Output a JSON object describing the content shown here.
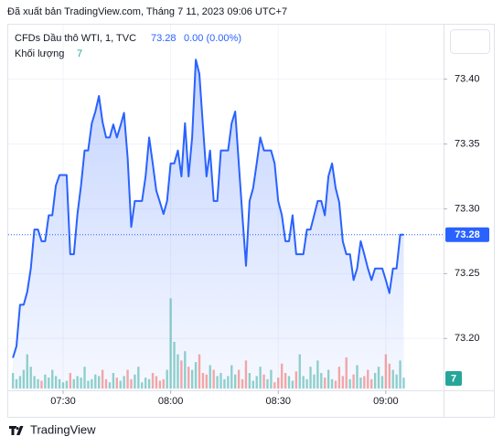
{
  "header": "Đã xuất bản TradingView.com, Tháng 7 11, 2023 09:06 UTC+7",
  "footer": "TradingView",
  "chart_data": {
    "type": "line",
    "change": "0.00 (0.00%)",
    "x": [
      436,
      437,
      438,
      439,
      440,
      441,
      442,
      443,
      444,
      445,
      446,
      447,
      448,
      449,
      450,
      451,
      452,
      453,
      454,
      455,
      456,
      457,
      458,
      459,
      460,
      461,
      462,
      463,
      464,
      465,
      466,
      467,
      468,
      469,
      470,
      471,
      472,
      473,
      474,
      475,
      476,
      477,
      478,
      479,
      480,
      481,
      482,
      483,
      484,
      485,
      486,
      487,
      488,
      489,
      490,
      491,
      492,
      493,
      494,
      495,
      496,
      497,
      498,
      499,
      500,
      501,
      502,
      503,
      504,
      505,
      506,
      507,
      508,
      509,
      510,
      511,
      512,
      513,
      514,
      515,
      516,
      517,
      518,
      519,
      520,
      521,
      522,
      523,
      524,
      525,
      526,
      527,
      528,
      529,
      530,
      531,
      532,
      533,
      534,
      535,
      536,
      537,
      538,
      539,
      540,
      541,
      542,
      543,
      544,
      545
    ],
    "series": [
      {
        "name": "CFDs Dầu thô WTI, 1, TVC",
        "color": "#2962ff",
        "values": [
          73.185,
          73.194,
          73.226,
          73.226,
          73.236,
          73.254,
          73.284,
          73.284,
          73.275,
          73.275,
          73.295,
          73.295,
          73.318,
          73.326,
          73.326,
          73.326,
          73.265,
          73.265,
          73.296,
          73.318,
          73.345,
          73.345,
          73.366,
          73.375,
          73.387,
          73.367,
          73.355,
          73.355,
          73.365,
          73.355,
          73.364,
          73.374,
          73.339,
          73.286,
          73.306,
          73.306,
          73.306,
          73.325,
          73.355,
          73.335,
          73.314,
          73.305,
          73.296,
          73.306,
          73.335,
          73.335,
          73.345,
          73.325,
          73.366,
          73.325,
          73.355,
          73.415,
          73.404,
          73.364,
          73.325,
          73.345,
          73.306,
          73.306,
          73.345,
          73.345,
          73.345,
          73.366,
          73.375,
          73.335,
          73.295,
          73.256,
          73.306,
          73.316,
          73.335,
          73.355,
          73.345,
          73.345,
          73.345,
          73.335,
          73.306,
          73.295,
          73.275,
          73.275,
          73.295,
          73.265,
          73.265,
          73.265,
          73.284,
          73.284,
          73.295,
          73.306,
          73.306,
          73.295,
          73.325,
          73.335,
          73.316,
          73.305,
          73.275,
          73.265,
          73.265,
          73.245,
          73.254,
          73.275,
          73.265,
          73.254,
          73.245,
          73.254,
          73.254,
          73.254,
          73.245,
          73.235,
          73.254,
          73.254,
          73.28,
          73.28
        ]
      }
    ],
    "volume": {
      "name": "Khối lượng",
      "up_color": "rgba(38,166,154,0.5)",
      "down_color": "rgba(239,83,80,0.5)",
      "label_color": "#26a69a",
      "values": [
        10,
        6,
        8,
        12,
        22,
        14,
        8,
        6,
        5,
        9,
        7,
        12,
        8,
        6,
        4,
        5,
        10,
        6,
        8,
        7,
        14,
        5,
        6,
        9,
        8,
        12,
        6,
        4,
        10,
        7,
        5,
        8,
        12,
        6,
        9,
        14,
        4,
        7,
        6,
        10,
        8,
        5,
        6,
        12,
        58,
        30,
        22,
        18,
        24,
        14,
        12,
        17,
        22,
        10,
        9,
        15,
        12,
        8,
        10,
        6,
        8,
        15,
        9,
        12,
        6,
        18,
        10,
        5,
        8,
        14,
        9,
        6,
        12,
        4,
        7,
        16,
        10,
        8,
        5,
        11,
        22,
        8,
        6,
        14,
        9,
        18,
        10,
        7,
        12,
        6,
        5,
        14,
        8,
        20,
        6,
        9,
        15,
        7,
        8,
        12,
        6,
        10,
        14,
        8,
        22,
        16,
        12,
        9,
        18,
        7
      ]
    },
    "xlim": [
      434.7,
      556.1
    ],
    "ylim": [
      73.16,
      73.442
    ],
    "xticks": [
      {
        "value": 450,
        "label": "07:30"
      },
      {
        "value": 480,
        "label": "08:00"
      },
      {
        "value": 510,
        "label": "08:30"
      },
      {
        "value": 540,
        "label": "09:00"
      }
    ],
    "yticks": [
      {
        "value": 73.2,
        "label": "73.20"
      },
      {
        "value": 73.25,
        "label": "73.25"
      },
      {
        "value": 73.3,
        "label": "73.30"
      },
      {
        "value": 73.35,
        "label": "73.35"
      },
      {
        "value": 73.4,
        "label": "73.40"
      }
    ],
    "grid": true
  }
}
